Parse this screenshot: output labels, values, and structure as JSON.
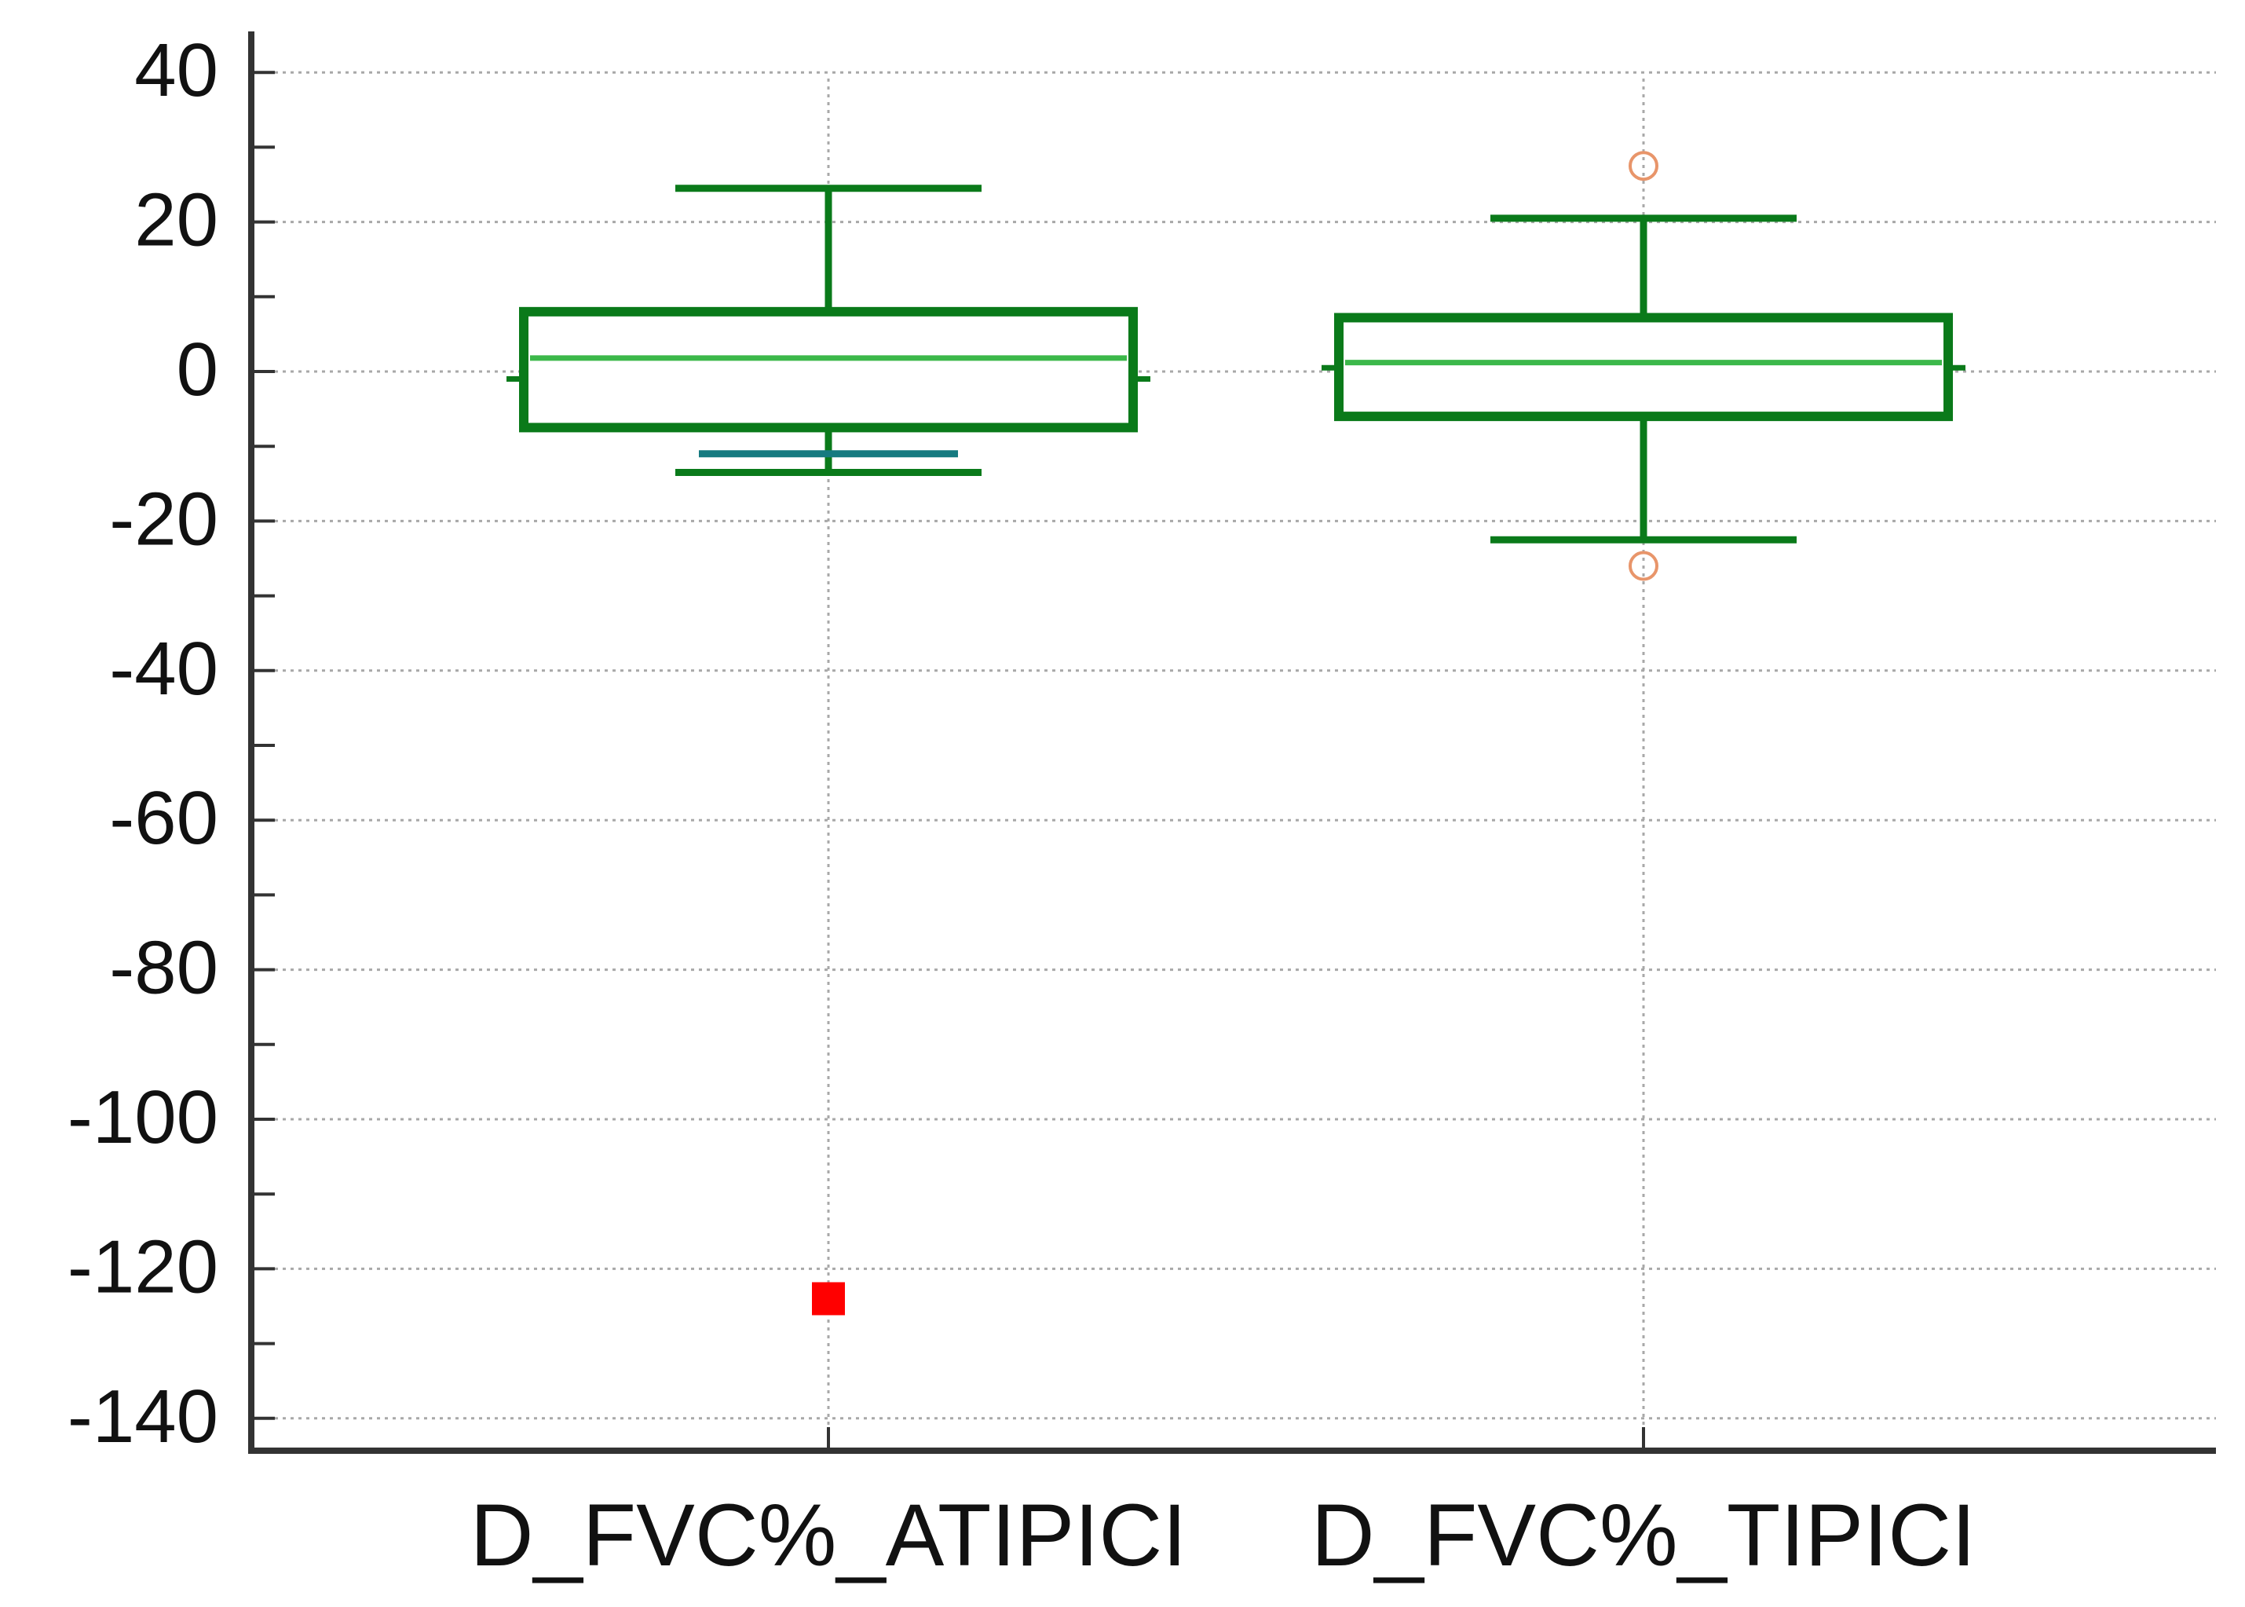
{
  "chart_data": {
    "type": "box",
    "title": "",
    "xlabel": "",
    "ylabel": "",
    "ylim": [
      -144,
      44
    ],
    "yticks": [
      40,
      20,
      0,
      -20,
      -40,
      -60,
      -80,
      -100,
      -120,
      -140
    ],
    "ytick_labels": [
      "40",
      "20",
      "0",
      "-20",
      "-40",
      "-60",
      "-80",
      "-100",
      "-120",
      "-140"
    ],
    "grid": true,
    "categories": [
      "D_FVC%_ATIPICI",
      "D_FVC%_TIPICI"
    ],
    "boxes": [
      {
        "name": "D_FVC%_ATIPICI",
        "whisker_low": -13.5,
        "q1": -7.5,
        "median": 1.8,
        "q3": 8.0,
        "whisker_high": 24.5,
        "mean": -1.0,
        "lower_ci": -11.0,
        "outliers": [],
        "far_outliers": [
          -124
        ]
      },
      {
        "name": "D_FVC%_TIPICI",
        "whisker_low": -22.5,
        "q1": -6.0,
        "median": 1.2,
        "q3": 7.2,
        "whisker_high": 20.5,
        "mean": 0.5,
        "lower_ci": null,
        "outliers": [
          27.5,
          -26.0
        ],
        "far_outliers": []
      }
    ],
    "colors": {
      "box": "#0a7a1a",
      "median": "#3cb84a",
      "ci_line": "#157a80",
      "outlier": "#e8956a",
      "far_outlier": "#ff0000",
      "grid": "#a8a8a8",
      "axis": "#333333"
    }
  }
}
